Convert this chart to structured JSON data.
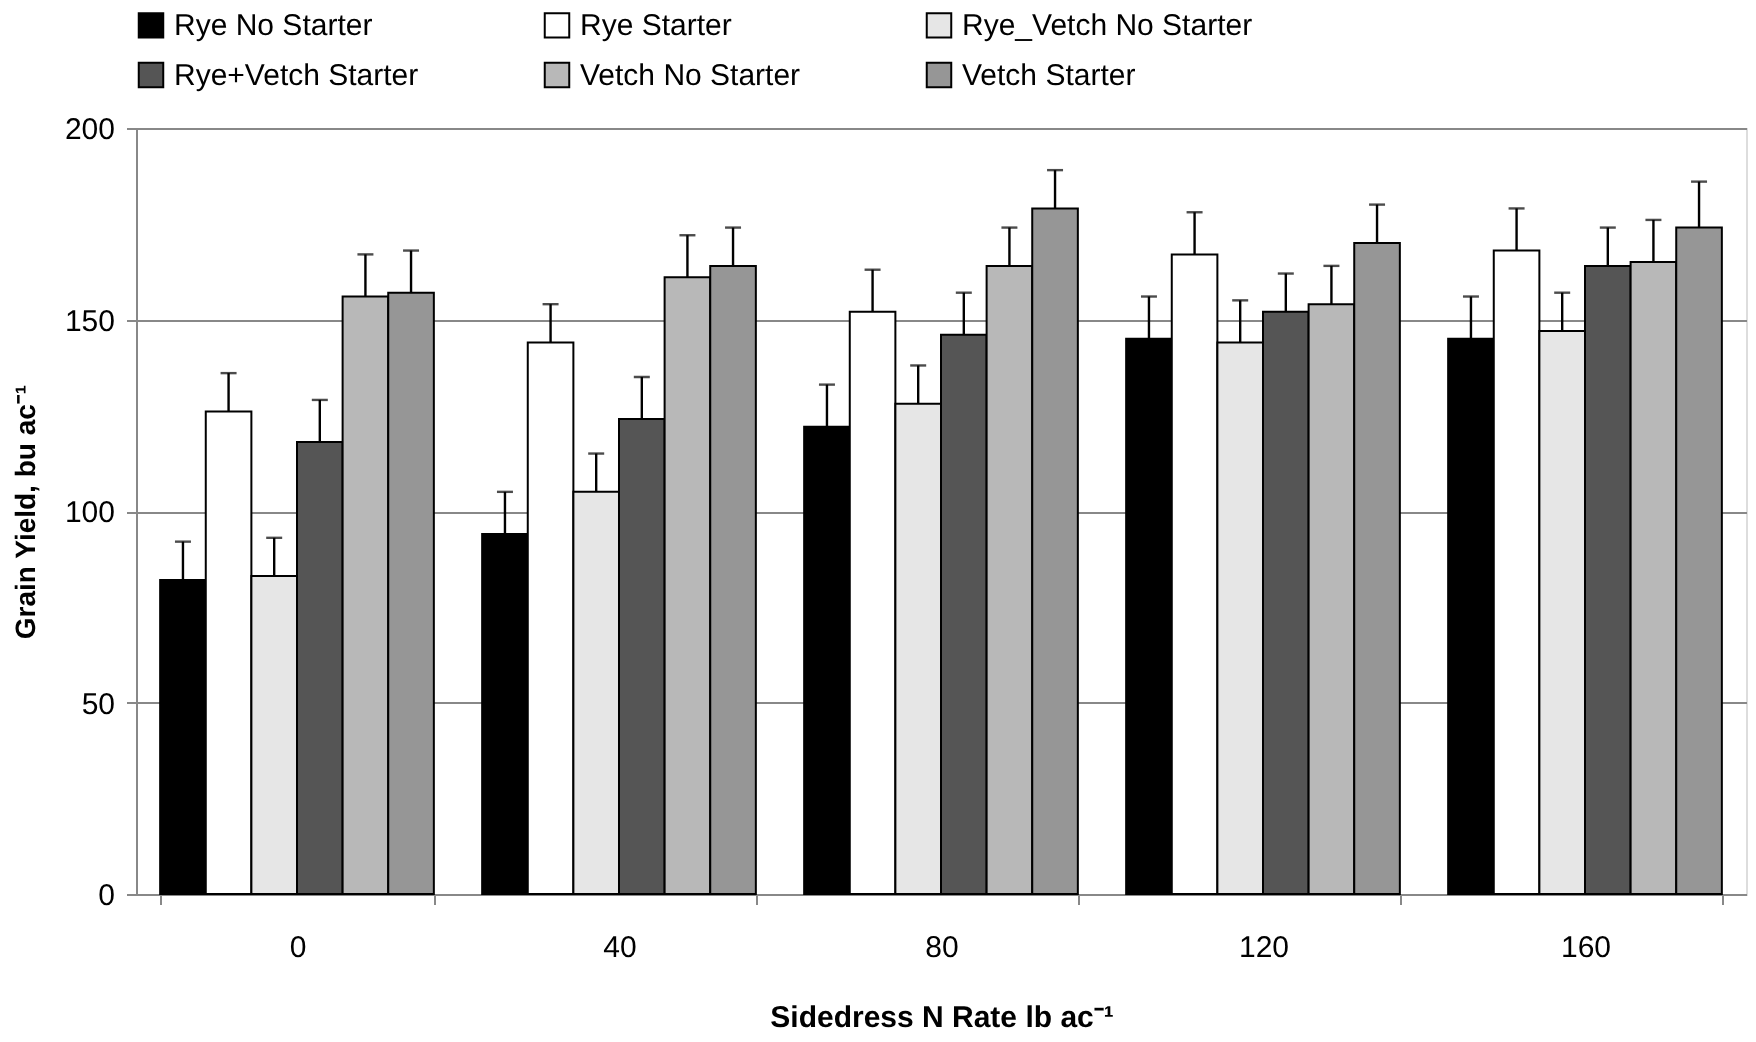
{
  "chart_data": {
    "type": "bar",
    "xlabel": "Sidedress N Rate lb ac⁻¹",
    "ylabel": "Grain Yield, bu ac⁻¹",
    "categories": [
      "0",
      "40",
      "80",
      "120",
      "160"
    ],
    "series": [
      {
        "name": "Rye No Starter",
        "color": "#000000",
        "values": [
          82,
          94,
          122,
          145,
          145
        ],
        "errors": [
          10,
          11,
          11,
          11,
          11
        ]
      },
      {
        "name": "Rye Starter",
        "color": "#ffffff",
        "values": [
          126,
          144,
          152,
          167,
          168
        ],
        "errors": [
          10,
          10,
          11,
          11,
          11
        ]
      },
      {
        "name": "Rye_Vetch No Starter",
        "color": "#e6e6e6",
        "values": [
          83,
          105,
          128,
          144,
          147
        ],
        "errors": [
          10,
          10,
          10,
          11,
          10
        ]
      },
      {
        "name": "Rye+Vetch Starter",
        "color": "#555555",
        "values": [
          118,
          124,
          146,
          152,
          164
        ],
        "errors": [
          11,
          11,
          11,
          10,
          10
        ]
      },
      {
        "name": "Vetch No Starter",
        "color": "#b8b8b8",
        "values": [
          156,
          161,
          164,
          154,
          165
        ],
        "errors": [
          11,
          11,
          10,
          10,
          11
        ]
      },
      {
        "name": "Vetch Starter",
        "color": "#969696",
        "values": [
          157,
          164,
          179,
          170,
          174
        ],
        "errors": [
          11,
          10,
          10,
          10,
          12
        ]
      }
    ],
    "ylim": [
      0,
      200
    ],
    "yticks": [
      0,
      50,
      100,
      150,
      200
    ],
    "grid": "y",
    "legend": "top"
  }
}
